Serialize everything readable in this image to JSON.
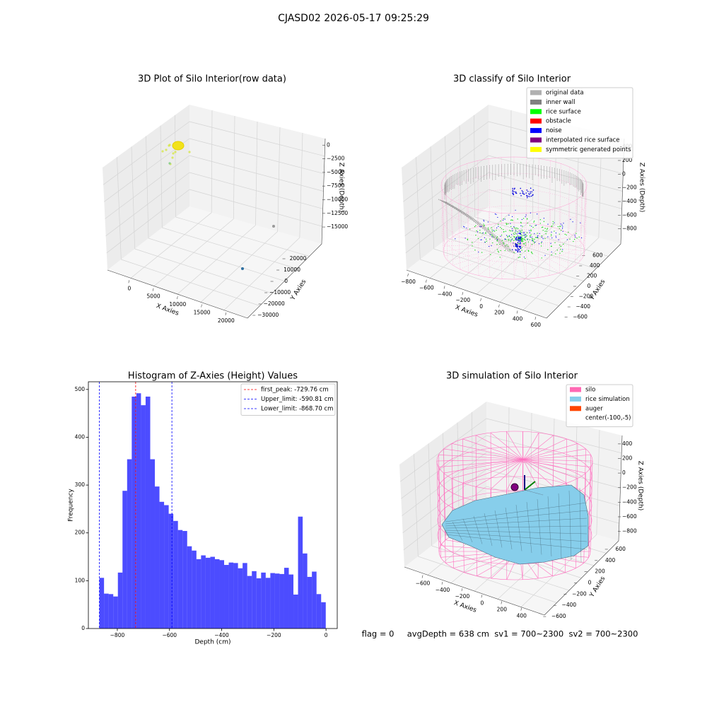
{
  "title": "CJASD02 2026-05-17 09:25:29",
  "footer": "flag = 0     avgDepth = 638 cm  sv1 = 700~2300  sv2 = 700~2300",
  "chart_data": [
    {
      "type": "scatter3d",
      "title": "3D Plot of Silo Interior(row data)",
      "xlabel": "X Axies",
      "ylabel": "Y Axies",
      "zlabel": "Z Axies (Depth)",
      "xlim": [
        -4500,
        24400
      ],
      "ylim": [
        -35000,
        30000
      ],
      "zlim": [
        -18100,
        1200
      ],
      "xticks": [
        0,
        5000,
        10000,
        15000,
        20000
      ],
      "yticks": [
        20000,
        10000,
        0,
        {
          "value": -10000,
          "label": "−10000"
        },
        {
          "value": -20000,
          "label": "−20000"
        },
        {
          "value": -30000,
          "label": "−30000"
        }
      ],
      "zticks": [
        0,
        {
          "value": -2500,
          "label": "−2500"
        },
        {
          "value": -5000,
          "label": "−5000"
        },
        {
          "value": -7500,
          "label": "−7500"
        },
        {
          "value": -10000,
          "label": "−10000"
        },
        {
          "value": -12500,
          "label": "−12500"
        },
        {
          "value": -15000,
          "label": "−15000"
        }
      ]
    },
    {
      "type": "scatter3d",
      "title": "3D classify of Silo Interior",
      "xlabel": "X Axies",
      "ylabel": "Y Axies",
      "zlabel": "Z Axies (Depth)",
      "xlim": [
        -820,
        710
      ],
      "ylim": [
        -730,
        730
      ],
      "zlim": [
        -1020,
        520
      ],
      "xticks": [
        {
          "value": -800,
          "label": "−800"
        },
        {
          "value": -600,
          "label": "−600"
        },
        {
          "value": -400,
          "label": "−400"
        },
        {
          "value": -200,
          "label": "−200"
        },
        0,
        200,
        400,
        600
      ],
      "yticks": [
        600,
        400,
        200,
        0,
        {
          "value": -200,
          "label": "−200"
        },
        {
          "value": -400,
          "label": "−400"
        },
        {
          "value": -600,
          "label": "−600"
        }
      ],
      "zticks": [
        400,
        200,
        0,
        {
          "value": -200,
          "label": "−200"
        },
        {
          "value": -400,
          "label": "−400"
        },
        {
          "value": -600,
          "label": "−600"
        },
        {
          "value": -800,
          "label": "−800"
        }
      ],
      "legend": [
        {
          "name": "original data",
          "color": "#b0b0b0"
        },
        {
          "name": "inner wall",
          "color": "#808080"
        },
        {
          "name": "rice surface",
          "color": "#00ff00"
        },
        {
          "name": "obstacle",
          "color": "#ff0000"
        },
        {
          "name": "noise",
          "color": "#0000ff"
        },
        {
          "name": "interpolated rice surface",
          "color": "#800080"
        },
        {
          "name": "symmetric generated points",
          "color": "#ffff00"
        }
      ]
    },
    {
      "type": "histogram",
      "title": "Histogram of Z-Axies (Height) Values",
      "xlabel": "Depth (cm)",
      "ylabel": "Frequency",
      "color": "#0000ff",
      "alpha": 0.7,
      "xlim": [
        -911,
        43
      ],
      "ylim": [
        0,
        516
      ],
      "xticks": [
        {
          "value": -800,
          "label": "−800"
        },
        {
          "value": -600,
          "label": "−600"
        },
        {
          "value": -400,
          "label": "−400"
        },
        {
          "value": -200,
          "label": "−200"
        },
        0
      ],
      "yticks": [
        0,
        100,
        200,
        300,
        400,
        500
      ],
      "bins": [
        -868.7,
        -850.99,
        -833.28,
        -815.58,
        -797.87,
        -780.16,
        -762.45,
        -744.74,
        -727.04,
        -709.33,
        -691.62,
        -673.91,
        -656.2,
        -638.5,
        -620.79,
        -603.08,
        -585.37,
        -567.66,
        -549.96,
        -532.25,
        -514.54,
        -496.83,
        -479.12,
        -461.42,
        -443.71,
        -426.0,
        -408.29,
        -390.58,
        -372.88,
        -355.17,
        -337.46,
        -319.75,
        -302.04,
        -284.34,
        -266.63,
        -248.92,
        -231.21,
        -213.5,
        -195.8,
        -178.09,
        -160.38,
        -142.67,
        -124.96,
        -107.26,
        -89.55,
        -71.84,
        -54.13,
        -36.42,
        -18.72,
        -1.01
      ],
      "values": [
        106,
        73,
        72,
        67,
        117,
        288,
        354,
        485,
        492,
        467,
        485,
        354,
        297,
        265,
        258,
        240,
        225,
        206,
        204,
        172,
        163,
        145,
        153,
        148,
        150,
        145,
        143,
        133,
        138,
        137,
        126,
        137,
        110,
        120,
        105,
        117,
        106,
        116,
        115,
        114,
        127,
        113,
        71,
        234,
        157,
        108,
        119,
        72,
        55
      ],
      "vlines": [
        {
          "label": "first_peak: -729.76 cm",
          "value": -729.76,
          "color": "#ff0000"
        },
        {
          "label": "Upper_limit: -590.81 cm",
          "value": -590.81,
          "color": "#0000ff"
        },
        {
          "label": "Lower_limit: -868.70 cm",
          "value": -868.7,
          "color": "#0000ff"
        }
      ]
    },
    {
      "type": "surface3d",
      "title": "3D simulation of Silo Interior",
      "xlabel": "X Axies",
      "ylabel": "Y Axies",
      "zlabel": "Z Axies (Depth)",
      "xlim": [
        -765,
        645
      ],
      "ylim": [
        -700,
        700
      ],
      "zlim": [
        -930,
        515
      ],
      "xticks": [
        {
          "value": -600,
          "label": "−600"
        },
        {
          "value": -400,
          "label": "−400"
        },
        {
          "value": -200,
          "label": "−200"
        },
        0,
        200,
        400
      ],
      "yticks": [
        600,
        400,
        200,
        0,
        {
          "value": -200,
          "label": "−200"
        },
        {
          "value": -400,
          "label": "−400"
        },
        {
          "value": -600,
          "label": "−600"
        }
      ],
      "zticks": [
        400,
        200,
        0,
        {
          "value": -200,
          "label": "−200"
        },
        {
          "value": -400,
          "label": "−400"
        },
        {
          "value": -600,
          "label": "−600"
        },
        {
          "value": -800,
          "label": "−800"
        }
      ],
      "legend": [
        {
          "name": "silo",
          "color": "#ff69b4"
        },
        {
          "name": "rice simulation",
          "color": "#87ceeb"
        },
        {
          "name": "auger",
          "color": "#ff4500"
        },
        {
          "name": "center(-100,-5)",
          "color": "#ffffff"
        }
      ]
    }
  ]
}
